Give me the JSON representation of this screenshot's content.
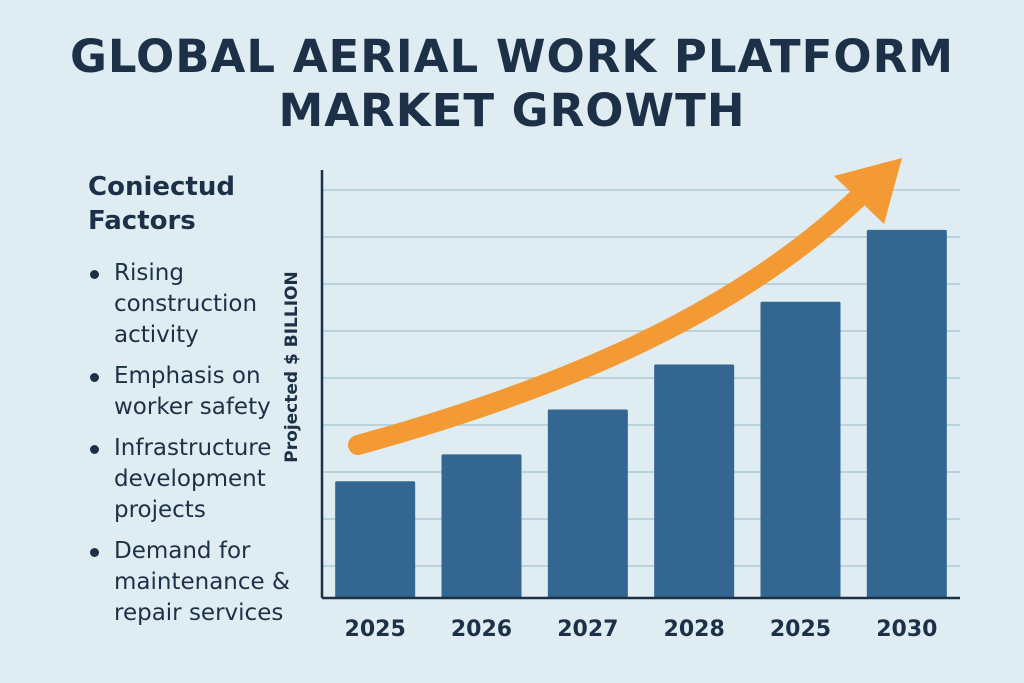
{
  "title_lines": [
    "GLOBAL AERIAL WORK PLATFORM",
    "MARKET GROWTH"
  ],
  "factors": {
    "heading": "Coniectud Factors",
    "items": [
      "Rising construction activity",
      "Emphasis on worker safety",
      "Infrastructure development projects",
      "Demand for maintenance & repair services"
    ]
  },
  "chart_data": {
    "type": "bar",
    "categories": [
      "2025",
      "2026",
      "2027",
      "2028",
      "2025",
      "2030"
    ],
    "values": [
      2.6,
      3.2,
      4.2,
      5.2,
      6.6,
      8.2
    ],
    "ylabel": "Projected $ BILLION",
    "ylim": [
      0,
      9.4
    ],
    "grid": true,
    "trend_arrow": true,
    "colors": {
      "bar": "#336690",
      "arrow": "#f39a34",
      "grid": "#b9d3dd",
      "axis": "#1c3148"
    }
  }
}
